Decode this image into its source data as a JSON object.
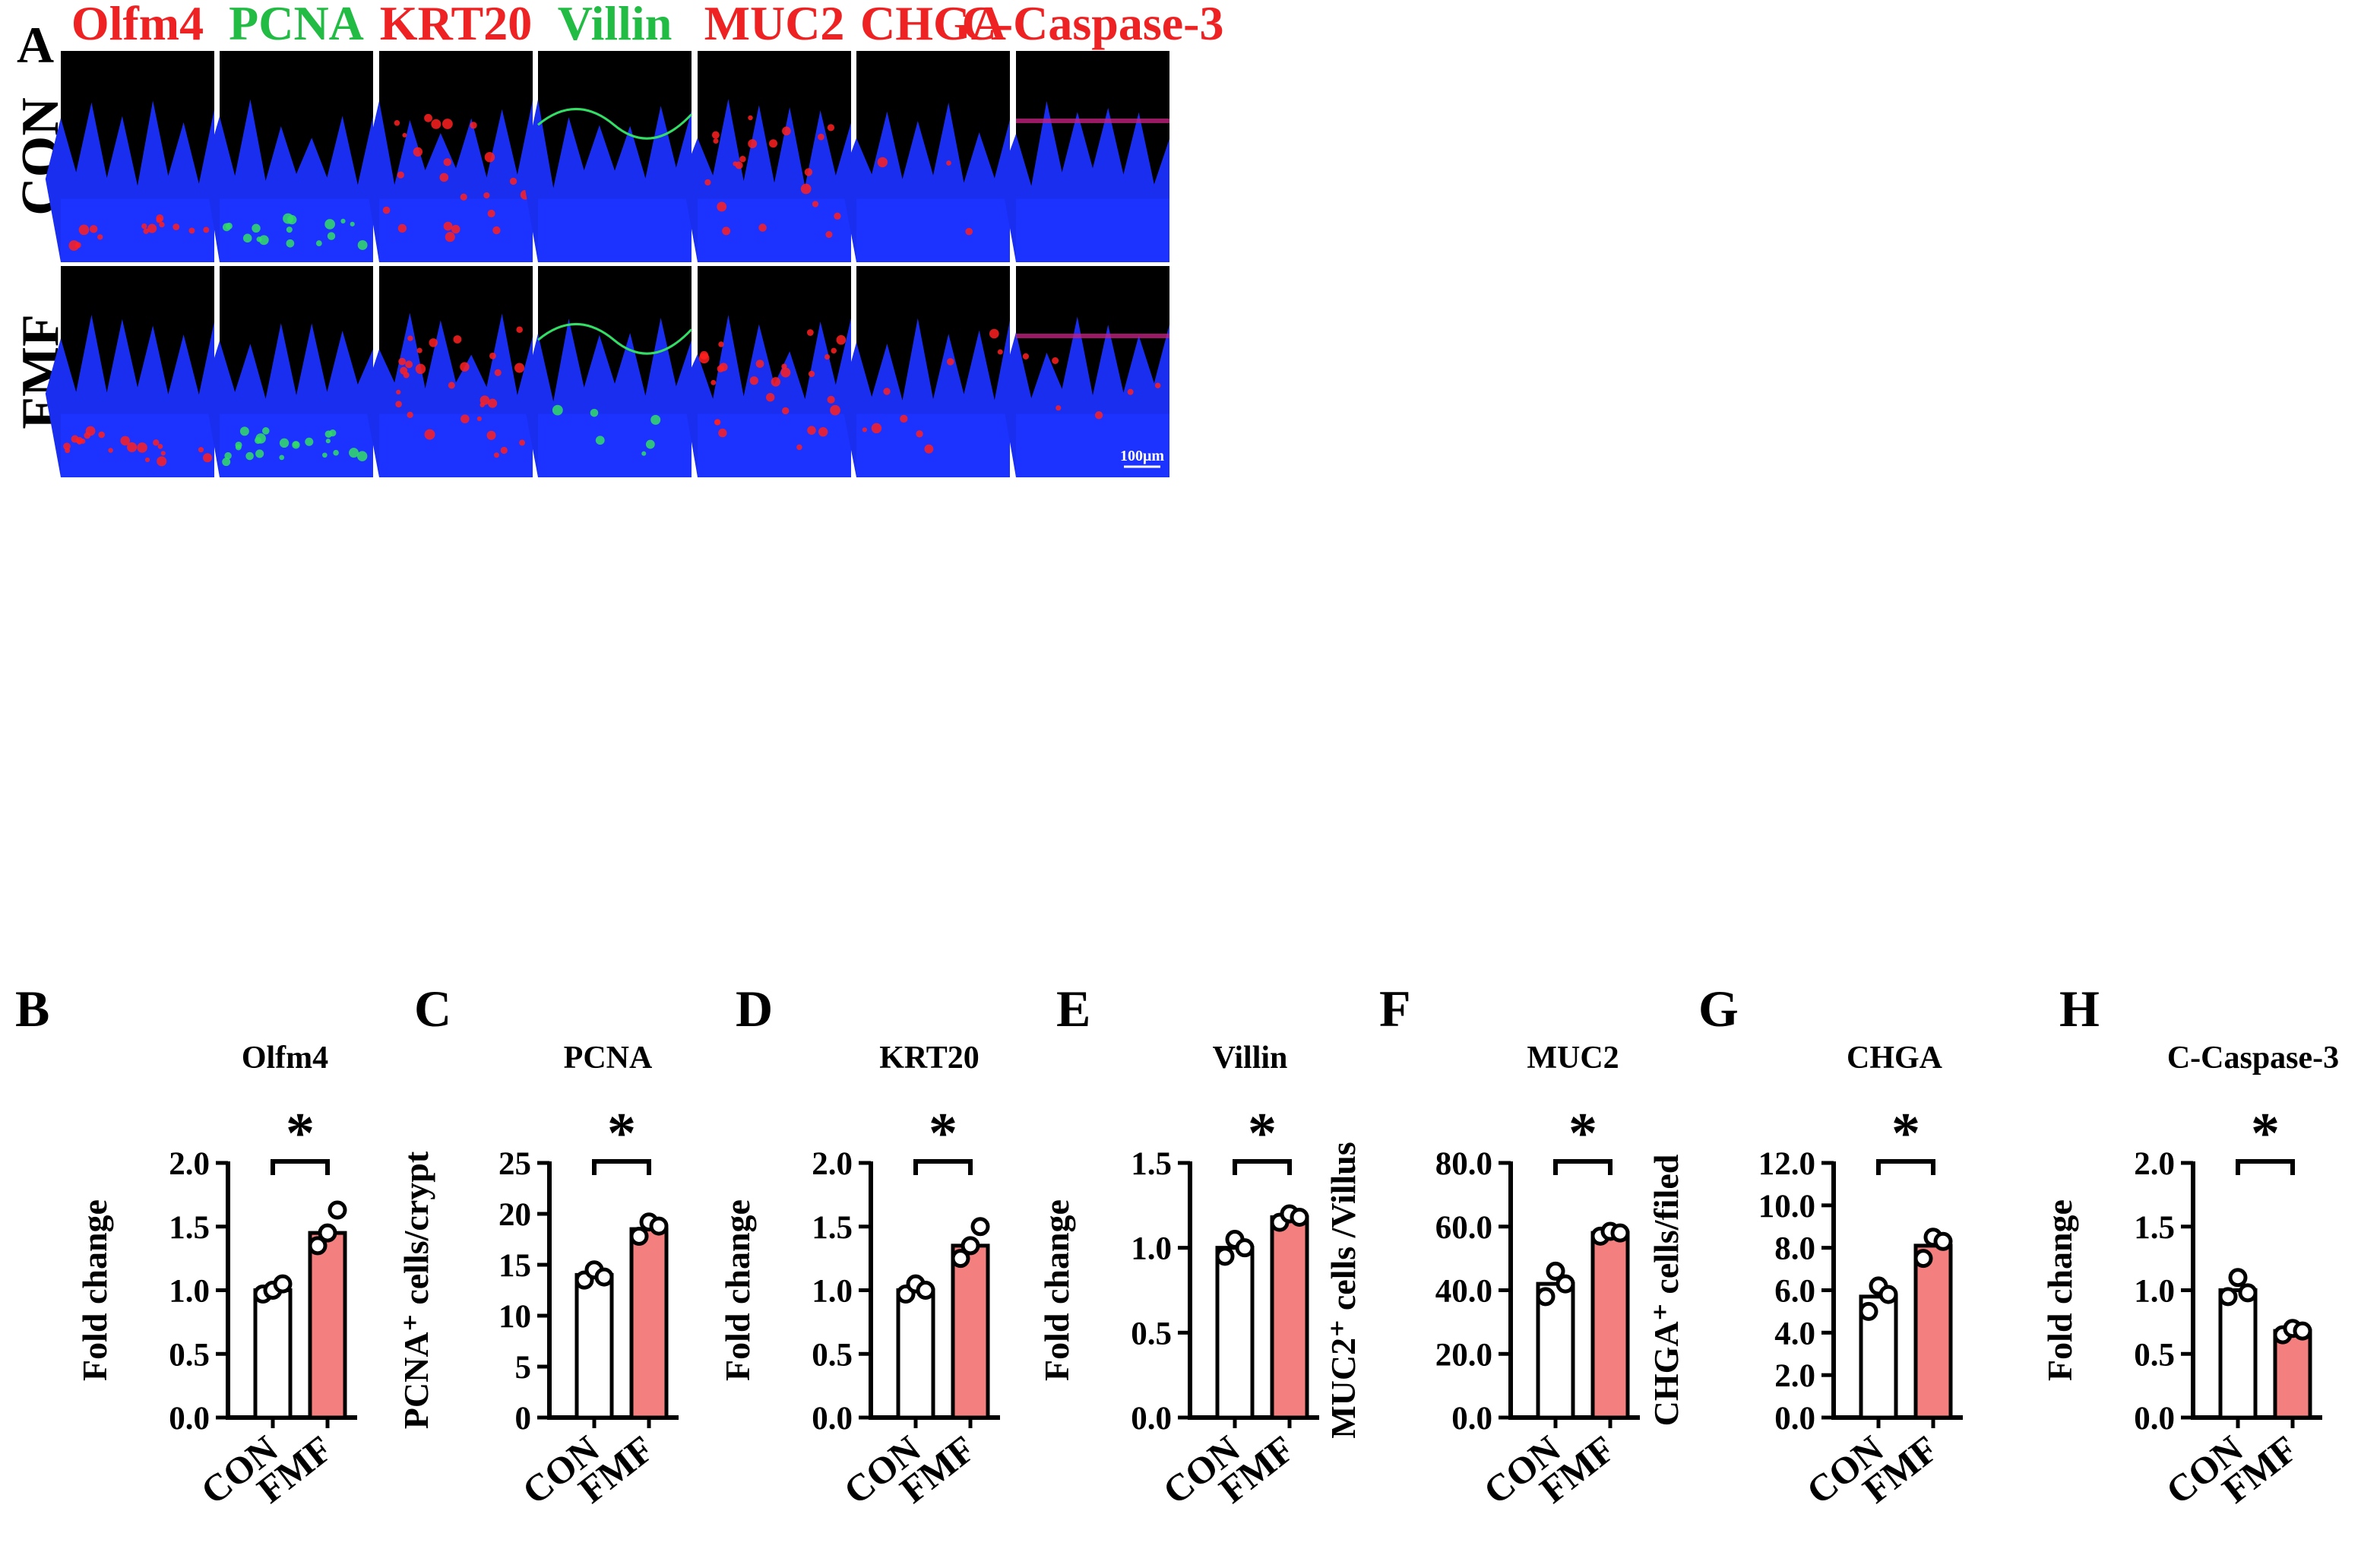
{
  "panel_a": {
    "letter": "A",
    "stains": [
      {
        "name": "Olfm4",
        "color": "#ee2222"
      },
      {
        "name": "PCNA",
        "color": "#22bb44"
      },
      {
        "name": "KRT20",
        "color": "#ee2222"
      },
      {
        "name": "Villin",
        "color": "#22bb44"
      },
      {
        "name": "MUC2",
        "color": "#ee2222"
      },
      {
        "name": "CHGA",
        "color": "#ee2222"
      },
      {
        "name": "C-Caspase-3",
        "color": "#ee2222"
      }
    ],
    "rows": [
      "CON",
      "FMF"
    ],
    "scale_bar": "100μm"
  },
  "colors": {
    "con_bar": "#ffffff",
    "fmf_bar": "#f47f7f",
    "axis": "#000000",
    "tissue": "#1a2ef0",
    "background": "#000000"
  },
  "chart_data": [
    {
      "panel": "B",
      "type": "bar",
      "title": "Olfm4",
      "ylabel": "Fold change",
      "categories": [
        "CON",
        "FMF"
      ],
      "values": [
        1.0,
        1.45
      ],
      "points": [
        [
          0.97,
          1.0,
          1.05
        ],
        [
          1.35,
          1.45,
          1.63
        ]
      ],
      "ylim": [
        0,
        2.0
      ],
      "yticks": [
        "0.0",
        "0.5",
        "1.0",
        "1.5",
        "2.0"
      ],
      "significance": "*"
    },
    {
      "panel": "C",
      "type": "bar",
      "title": "PCNA",
      "ylabel": "PCNA⁺ cells/crypt",
      "categories": [
        "CON",
        "FMF"
      ],
      "values": [
        14.0,
        18.5
      ],
      "points": [
        [
          13.5,
          14.5,
          13.8
        ],
        [
          17.8,
          19.2,
          18.8
        ]
      ],
      "ylim": [
        0,
        25
      ],
      "yticks": [
        "0",
        "5",
        "10",
        "15",
        "20",
        "25"
      ],
      "significance": "*"
    },
    {
      "panel": "D",
      "type": "bar",
      "title": "KRT20",
      "ylabel": "Fold change",
      "categories": [
        "CON",
        "FMF"
      ],
      "values": [
        1.0,
        1.35
      ],
      "points": [
        [
          0.97,
          1.05,
          1.0
        ],
        [
          1.25,
          1.35,
          1.5
        ]
      ],
      "ylim": [
        0,
        2.0
      ],
      "yticks": [
        "0.0",
        "0.5",
        "1.0",
        "1.5",
        "2.0"
      ],
      "significance": "*"
    },
    {
      "panel": "E",
      "type": "bar",
      "title": "Villin",
      "ylabel": "Fold change",
      "categories": [
        "CON",
        "FMF"
      ],
      "values": [
        1.0,
        1.18
      ],
      "points": [
        [
          0.95,
          1.05,
          1.0
        ],
        [
          1.15,
          1.2,
          1.18
        ]
      ],
      "ylim": [
        0,
        1.5
      ],
      "yticks": [
        "0.0",
        "0.5",
        "1.0",
        "1.5"
      ],
      "significance": "*"
    },
    {
      "panel": "F",
      "type": "bar",
      "title": "MUC2",
      "ylabel": "MUC2⁺ cells /Villus",
      "categories": [
        "CON",
        "FMF"
      ],
      "values": [
        42.0,
        58.0
      ],
      "points": [
        [
          38.0,
          46.0,
          42.0
        ],
        [
          57.0,
          58.5,
          58.0
        ]
      ],
      "ylim": [
        0,
        80
      ],
      "yticks": [
        "0.0",
        "20.0",
        "40.0",
        "60.0",
        "80.0"
      ],
      "significance": "*"
    },
    {
      "panel": "G",
      "type": "bar",
      "title": "CHGA",
      "ylabel": "CHGA⁺ cells/filed",
      "categories": [
        "CON",
        "FMF"
      ],
      "values": [
        5.7,
        8.1
      ],
      "points": [
        [
          5.0,
          6.2,
          5.8
        ],
        [
          7.5,
          8.5,
          8.3
        ]
      ],
      "ylim": [
        0,
        12.0
      ],
      "yticks": [
        "0.0",
        "2.0",
        "4.0",
        "6.0",
        "8.0",
        "10.0",
        "12.0"
      ],
      "significance": "*"
    },
    {
      "panel": "H",
      "type": "bar",
      "title": "C-Caspase-3",
      "ylabel": "Fold change",
      "categories": [
        "CON",
        "FMF"
      ],
      "values": [
        1.0,
        0.68
      ],
      "points": [
        [
          0.95,
          1.1,
          0.98
        ],
        [
          0.65,
          0.7,
          0.68
        ]
      ],
      "ylim": [
        0,
        2.0
      ],
      "yticks": [
        "0.0",
        "0.5",
        "1.0",
        "1.5",
        "2.0"
      ],
      "significance": "*"
    }
  ]
}
